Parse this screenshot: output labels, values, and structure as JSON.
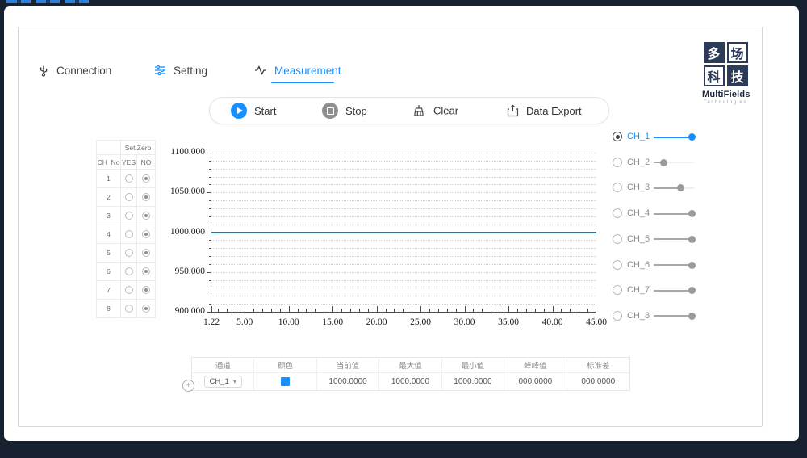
{
  "tabs": [
    {
      "label": "Connection",
      "icon": "usb-icon",
      "active": false
    },
    {
      "label": "Setting",
      "icon": "sliders-icon",
      "active": false
    },
    {
      "label": "Measurement",
      "icon": "pulse-icon",
      "active": true
    }
  ],
  "toolbar": {
    "start_label": "Start",
    "stop_label": "Stop",
    "clear_label": "Clear",
    "export_label": "Data Export"
  },
  "logo": {
    "chars": [
      "多",
      "场",
      "科",
      "技"
    ],
    "name": "MultiFields",
    "sub": "Technologies"
  },
  "zero_table": {
    "title": "Set Zero",
    "col_ch": "CH_No",
    "col_yes": "YES",
    "col_no": "NO",
    "rows": [
      {
        "ch": "1",
        "set_zero": "NO"
      },
      {
        "ch": "2",
        "set_zero": "NO"
      },
      {
        "ch": "3",
        "set_zero": "NO"
      },
      {
        "ch": "4",
        "set_zero": "NO"
      },
      {
        "ch": "5",
        "set_zero": "NO"
      },
      {
        "ch": "6",
        "set_zero": "NO"
      },
      {
        "ch": "7",
        "set_zero": "NO"
      },
      {
        "ch": "8",
        "set_zero": "NO"
      }
    ]
  },
  "chart_data": {
    "type": "line",
    "title": "",
    "xlabel": "",
    "ylabel": "",
    "xlim": [
      1.22,
      45.0
    ],
    "ylim": [
      900.0,
      1100.0
    ],
    "x_major_ticks": [
      1.22,
      5,
      10,
      15,
      20,
      25,
      30,
      35,
      40,
      45
    ],
    "x_tick_labels": [
      "1.22",
      "5.00",
      "10.00",
      "15.00",
      "20.00",
      "25.00",
      "30.00",
      "35.00",
      "40.00",
      "45.00"
    ],
    "x_minor_step": 1,
    "y_major_ticks": [
      900,
      950,
      1000,
      1050,
      1100
    ],
    "y_tick_labels": [
      "900.000",
      "950.000",
      "1000.000",
      "1050.000",
      "1100.000"
    ],
    "y_minor_step": 10,
    "grid": "horizontal-dotted",
    "legend_position": "right",
    "series": [
      {
        "name": "CH_1",
        "color": "#1f77b4",
        "points": [
          [
            1.22,
            1000.0
          ],
          [
            45.0,
            1000.0
          ]
        ]
      }
    ]
  },
  "channels": [
    {
      "label": "CH_1",
      "selected": true,
      "active": true,
      "slider_pct": 100
    },
    {
      "label": "CH_2",
      "selected": false,
      "active": false,
      "slider_pct": 30
    },
    {
      "label": "CH_3",
      "selected": false,
      "active": false,
      "slider_pct": 72
    },
    {
      "label": "CH_4",
      "selected": false,
      "active": false,
      "slider_pct": 100
    },
    {
      "label": "CH_5",
      "selected": false,
      "active": false,
      "slider_pct": 100
    },
    {
      "label": "CH_6",
      "selected": false,
      "active": false,
      "slider_pct": 100
    },
    {
      "label": "CH_7",
      "selected": false,
      "active": false,
      "slider_pct": 100
    },
    {
      "label": "CH_8",
      "selected": false,
      "active": false,
      "slider_pct": 100
    }
  ],
  "stats_table": {
    "headers": [
      "通道",
      "颜色",
      "当前值",
      "最大值",
      "最小值",
      "峰峰值",
      "标准差"
    ],
    "row": {
      "channel": "CH_1",
      "color": "#1890ff",
      "current": "1000.0000",
      "max": "1000.0000",
      "min": "1000.0000",
      "peak_peak": "000.0000",
      "std_dev": "000.0000"
    }
  },
  "colors": {
    "accent": "#1890ff",
    "chart_line": "#1f77b4",
    "navy_bg": "#17212f",
    "logo_navy": "#2c3b5a",
    "stop_gray": "#8f8f8f"
  }
}
